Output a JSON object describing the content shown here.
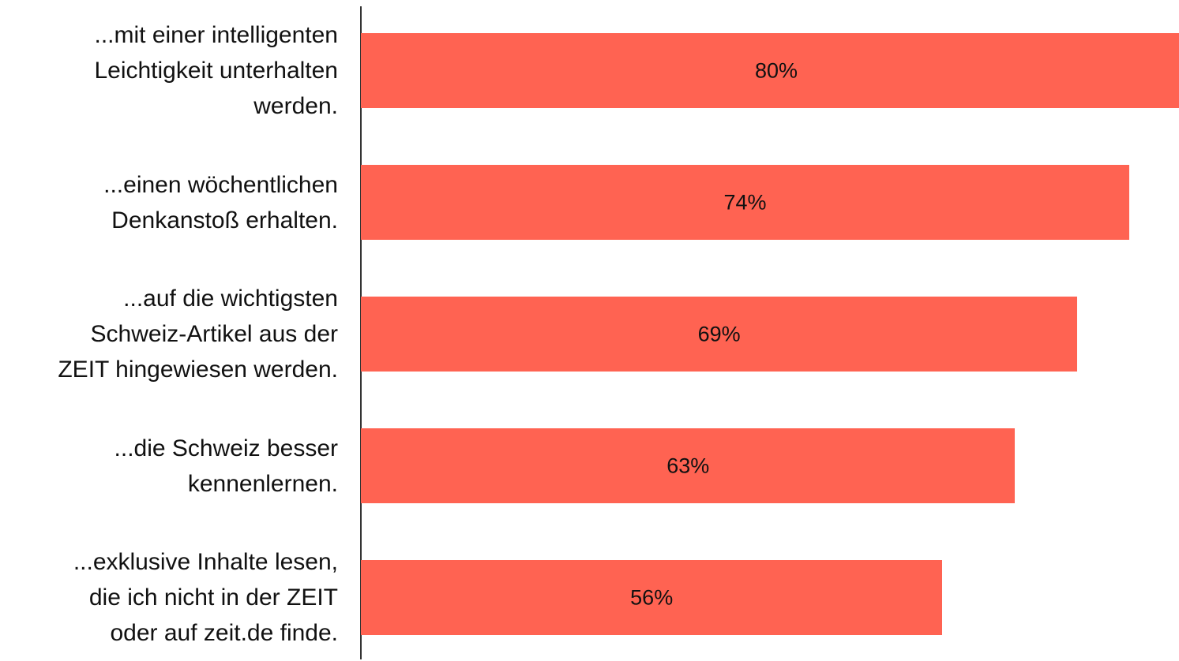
{
  "chart_data": {
    "type": "barh",
    "categories": [
      "...mit einer intelligenten\nLeichtigkeit unterhalten\nwerden.",
      "...einen wöchentlichen \nDenkanstoß erhalten.",
      "...auf die wichtigsten\nSchweiz-Artikel aus der\nZEIT hingewiesen werden.",
      "...die Schweiz besser\nkennenlernen.",
      "...exklusive Inhalte lesen,\ndie ich nicht in der ZEIT\noder auf zeit.de finde."
    ],
    "values": [
      80,
      74,
      69,
      63,
      56
    ],
    "value_labels": [
      "80%",
      "74%",
      "69%",
      "63%",
      "56%"
    ],
    "color": "#ff6352",
    "xlim": [
      0,
      80
    ]
  }
}
